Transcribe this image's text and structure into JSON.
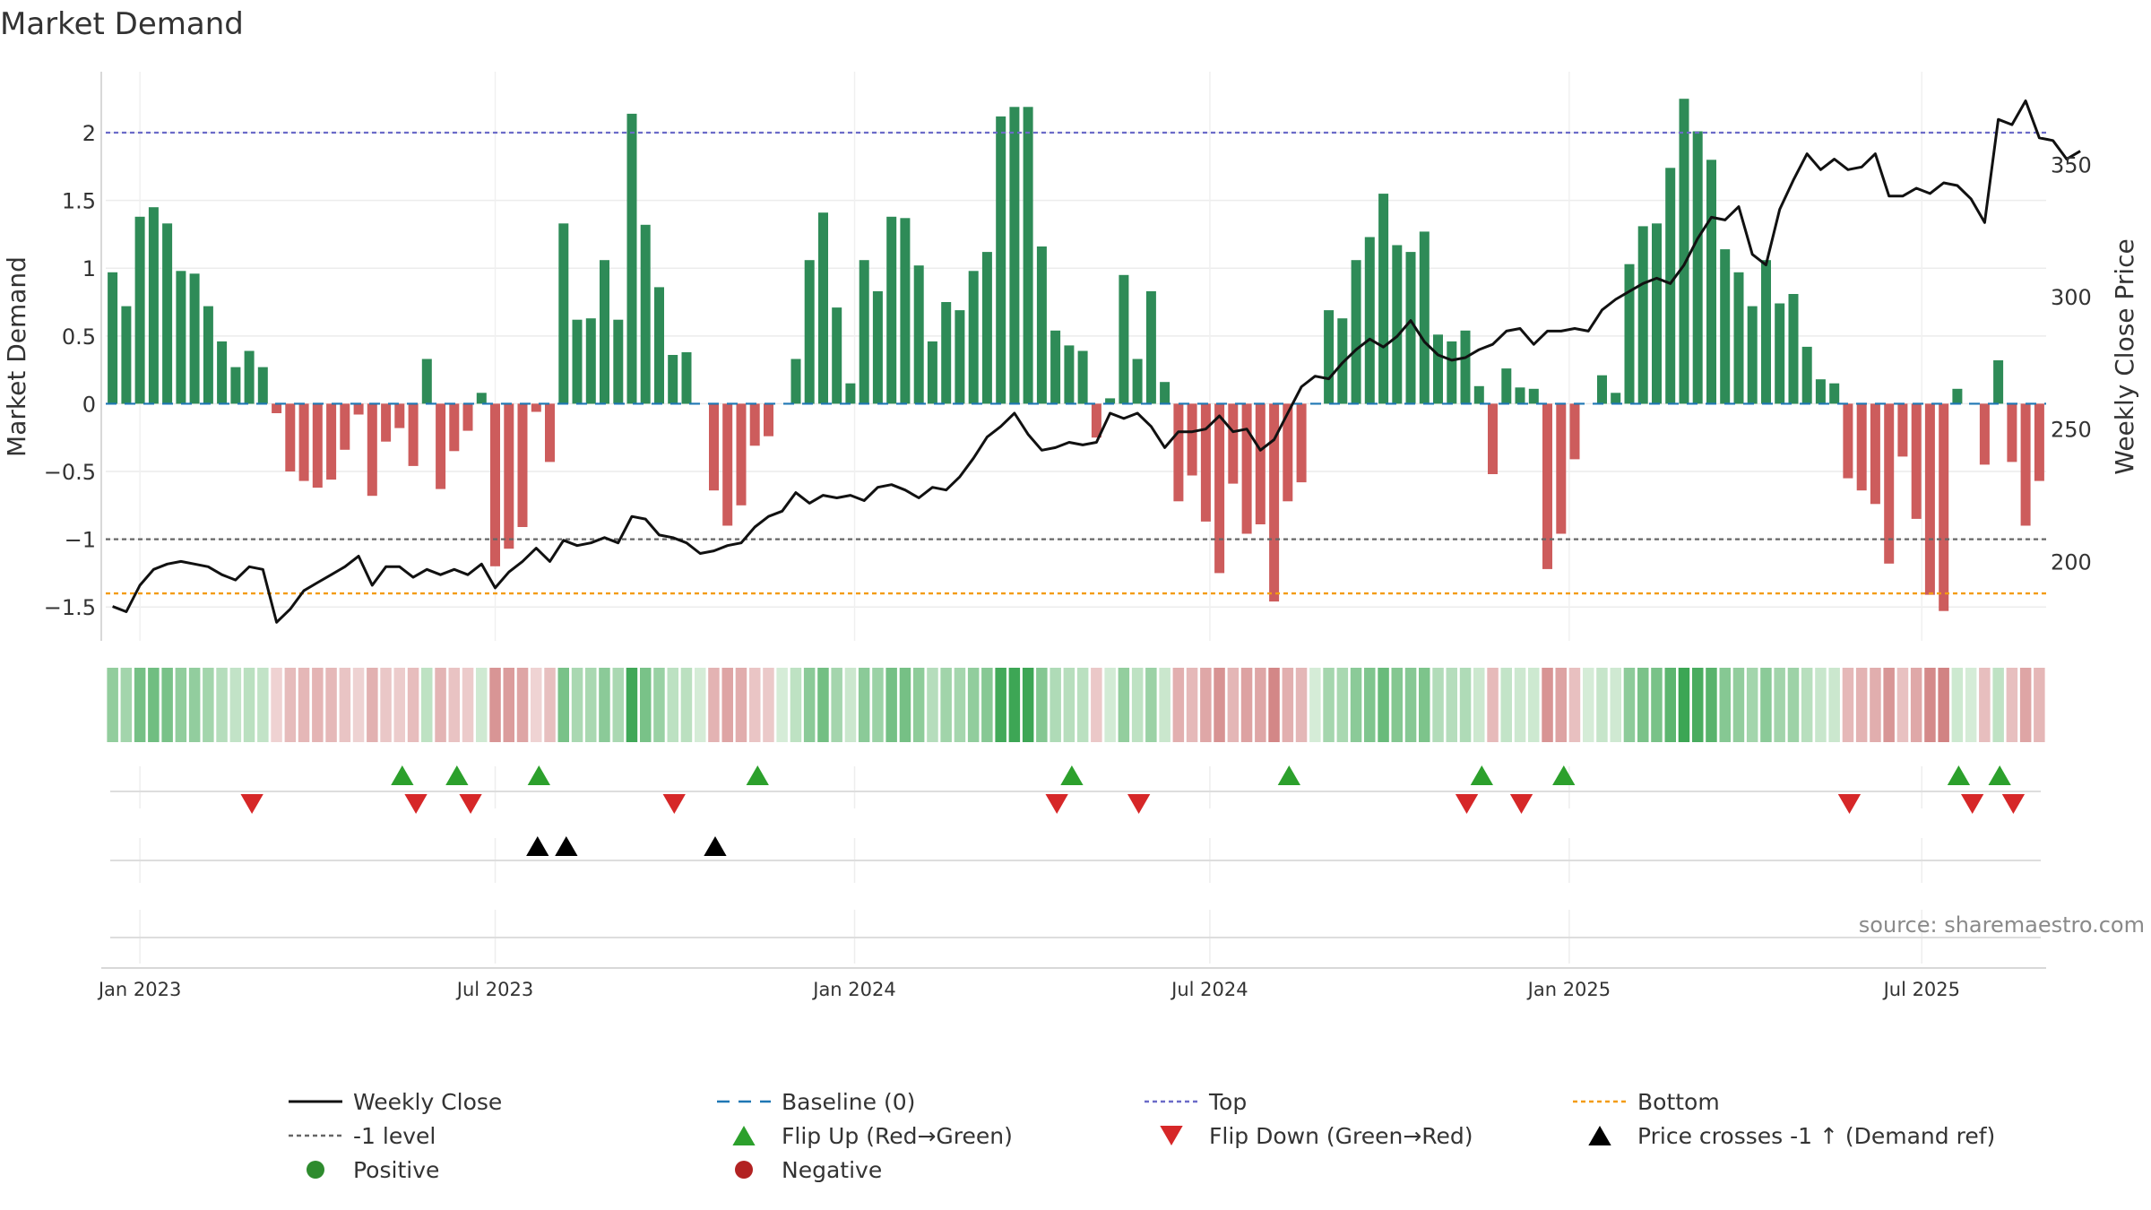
{
  "chart_data": {
    "type": "bar",
    "title": "Market Demand",
    "ylabel": "Market Demand",
    "y2label": "Weekly Close Price",
    "ylim": [
      -1.75,
      2.45
    ],
    "y2lim": [
      170,
      385
    ],
    "yticks": [
      {
        "v": 2,
        "t": "2"
      },
      {
        "v": 1.5,
        "t": "1.5"
      },
      {
        "v": 1,
        "t": "1"
      },
      {
        "v": 0.5,
        "t": "0.5"
      },
      {
        "v": 0,
        "t": "0"
      },
      {
        "v": -0.5,
        "t": "−0.5"
      },
      {
        "v": -1,
        "t": "−1"
      },
      {
        "v": -1.5,
        "t": "−1.5"
      }
    ],
    "y2ticks": [
      {
        "v": 350,
        "t": "350"
      },
      {
        "v": 300,
        "t": "300"
      },
      {
        "v": 250,
        "t": "250"
      },
      {
        "v": 200,
        "t": "200"
      }
    ],
    "xticks": [
      {
        "w": 2,
        "t": "Jan 2023"
      },
      {
        "w": 28,
        "t": "Jul 2023"
      },
      {
        "w": 54.3,
        "t": "Jan 2024"
      },
      {
        "w": 80.3,
        "t": "Jul 2024"
      },
      {
        "w": 106.6,
        "t": "Jan 2025"
      },
      {
        "w": 132.4,
        "t": "Jul 2025"
      }
    ],
    "reference_lines": {
      "top": 2,
      "bottom": -1.4,
      "minus_one": -1,
      "baseline": 0
    },
    "demand": [
      0.97,
      0.72,
      1.38,
      1.45,
      1.33,
      0.98,
      0.96,
      0.72,
      0.46,
      0.27,
      0.39,
      0.27,
      -0.07,
      -0.5,
      -0.57,
      -0.62,
      -0.56,
      -0.34,
      -0.08,
      -0.68,
      -0.28,
      -0.18,
      -0.46,
      0.33,
      -0.63,
      -0.35,
      -0.2,
      0.08,
      -1.2,
      -1.07,
      -0.91,
      -0.06,
      -0.43,
      1.33,
      0.62,
      0.63,
      1.06,
      0.62,
      2.14,
      1.32,
      0.86,
      0.36,
      0.38,
      0,
      -0.64,
      -0.9,
      -0.75,
      -0.31,
      -0.24,
      0,
      0.33,
      1.06,
      1.41,
      0.71,
      0.15,
      1.06,
      0.83,
      1.38,
      1.37,
      1.02,
      0.46,
      0.75,
      0.69,
      0.98,
      1.12,
      2.12,
      2.19,
      2.19,
      1.16,
      0.54,
      0.43,
      0.39,
      -0.25,
      0.04,
      0.95,
      0.33,
      0.83,
      0.16,
      -0.72,
      -0.53,
      -0.87,
      -1.25,
      -0.59,
      -0.96,
      -0.89,
      -1.46,
      -0.72,
      -0.58,
      0,
      0.69,
      0.63,
      1.06,
      1.23,
      1.55,
      1.17,
      1.12,
      1.27,
      0.51,
      0.46,
      0.54,
      0.13,
      -0.52,
      0.26,
      0.12,
      0.11,
      -1.22,
      -0.96,
      -0.41,
      0,
      0.21,
      0.08,
      1.03,
      1.31,
      1.33,
      1.74,
      2.25,
      2.01,
      1.8,
      1.14,
      0.97,
      0.72,
      1.06,
      0.74,
      0.81,
      0.42,
      0.18,
      0.15,
      -0.55,
      -0.64,
      -0.74,
      -1.18,
      -0.39,
      -0.85,
      -1.41,
      -1.53,
      0.11,
      0,
      -0.45,
      0.32,
      -0.43,
      -0.9,
      -0.57
    ],
    "weekly_close": [
      183,
      181,
      191,
      197,
      199,
      200,
      199,
      198,
      195,
      193,
      198,
      197,
      177,
      182,
      189,
      192,
      195,
      198,
      202,
      191,
      198,
      198,
      194,
      197,
      195,
      197,
      195,
      199,
      190,
      196,
      200,
      205,
      200,
      208,
      206,
      207,
      209,
      207,
      217,
      216,
      210,
      209,
      207,
      203,
      204,
      206,
      207,
      213,
      217,
      219,
      226,
      222,
      225,
      224,
      225,
      223,
      228,
      229,
      227,
      224,
      228,
      227,
      232,
      239,
      247,
      251,
      256,
      248,
      242,
      243,
      245,
      244,
      245,
      256,
      254,
      256,
      251,
      243,
      249,
      249,
      250,
      255,
      249,
      250,
      242,
      246,
      256,
      266,
      270,
      269,
      275,
      280,
      284,
      281,
      285,
      291,
      283,
      278,
      276,
      277,
      280,
      282,
      287,
      288,
      282,
      287,
      287,
      288,
      287,
      295,
      299,
      302,
      305,
      307,
      305,
      312,
      322,
      330,
      329,
      334,
      316,
      312,
      333,
      344,
      354,
      348,
      352,
      348,
      349,
      354,
      338,
      338,
      341,
      339,
      343,
      342,
      337,
      328,
      367,
      365,
      374,
      360,
      359,
      352,
      355
    ],
    "heat_strip": {
      "label": "demand heat strip"
    },
    "flip_up_weeks": [
      21.2,
      25.2,
      31.2,
      47.2,
      70.2,
      86.1,
      100.2,
      106.2,
      135.1,
      138.1
    ],
    "flip_down_weeks": [
      10.2,
      22.2,
      26.2,
      41.1,
      69.1,
      75.1,
      99.1,
      103.1,
      127.1,
      136.1,
      139.1
    ],
    "price_cross_weeks": [
      31.1,
      33.2,
      44.1
    ],
    "legend": [
      {
        "key": "close",
        "label": "Weekly Close",
        "color": "#111111"
      },
      {
        "key": "baseline",
        "label": "Baseline (0)",
        "color": "#1f77b4"
      },
      {
        "key": "top",
        "label": "Top",
        "color": "#6b6bc8"
      },
      {
        "key": "bottom",
        "label": "Bottom",
        "color": "#f39c12"
      },
      {
        "key": "minus_one",
        "label": "-1 level",
        "color": "#666666"
      },
      {
        "key": "flip_up",
        "label": "Flip Up (Red→Green)",
        "color": "#2ca02c"
      },
      {
        "key": "flip_down",
        "label": "Flip Down (Green→Red)",
        "color": "#d62728"
      },
      {
        "key": "price_cross",
        "label": "Price crosses -1 ↑ (Demand ref)",
        "color": "#000000"
      },
      {
        "key": "positive",
        "label": "Positive",
        "color": "#2e8b2e"
      },
      {
        "key": "negative",
        "label": "Negative",
        "color": "#b22222"
      }
    ],
    "source": "source: sharemaestro.com"
  }
}
